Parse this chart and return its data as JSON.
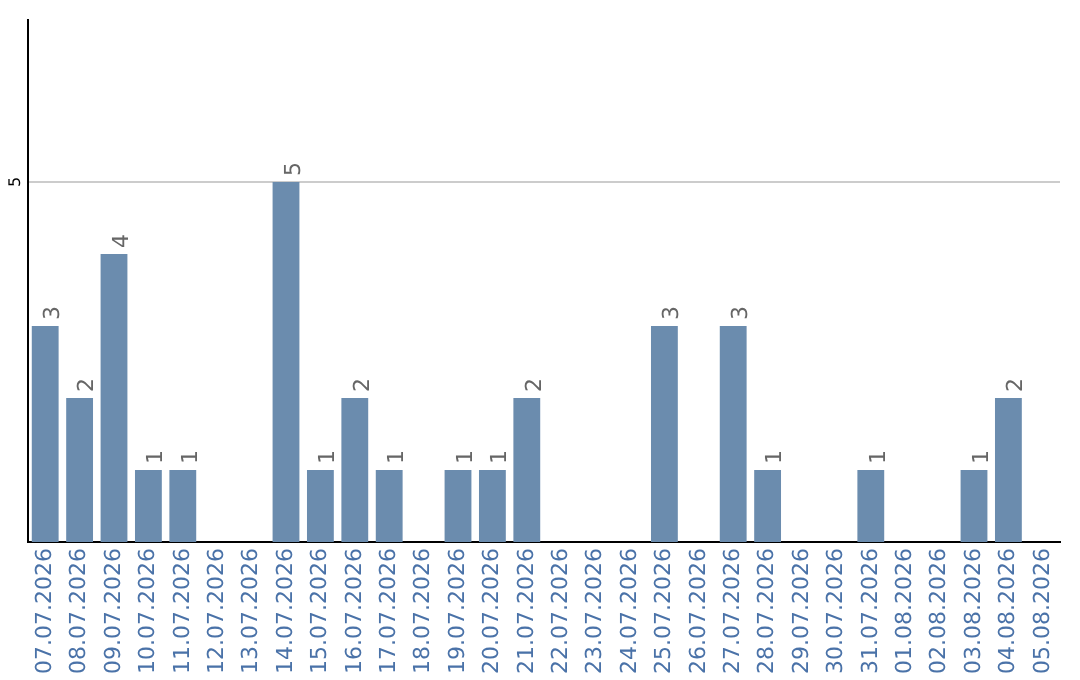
{
  "chart_data": {
    "type": "bar",
    "categories": [
      "07.07.2026",
      "08.07.2026",
      "09.07.2026",
      "10.07.2026",
      "11.07.2026",
      "12.07.2026",
      "13.07.2026",
      "14.07.2026",
      "15.07.2026",
      "16.07.2026",
      "17.07.2026",
      "18.07.2026",
      "19.07.2026",
      "20.07.2026",
      "21.07.2026",
      "22.07.2026",
      "23.07.2026",
      "24.07.2026",
      "25.07.2026",
      "26.07.2026",
      "27.07.2026",
      "28.07.2026",
      "29.07.2026",
      "30.07.2026",
      "31.07.2026",
      "01.08.2026",
      "02.08.2026",
      "03.08.2026",
      "04.08.2026",
      "05.08.2026"
    ],
    "values": [
      3,
      2,
      4,
      1,
      1,
      null,
      null,
      5,
      1,
      2,
      1,
      null,
      1,
      1,
      2,
      null,
      null,
      null,
      3,
      null,
      3,
      1,
      null,
      null,
      1,
      null,
      null,
      1,
      2,
      null
    ],
    "color": "#6b8cae",
    "ylim": [
      0,
      7.25
    ],
    "yticks": [
      5
    ],
    "grid": "y",
    "data_labels": true,
    "legend": false
  }
}
